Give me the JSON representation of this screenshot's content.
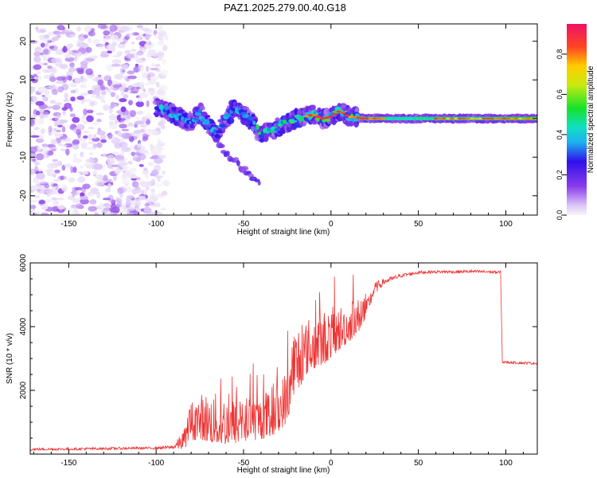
{
  "figure_title": "PAZ1.2025.279.00.40.G18",
  "chart_data": [
    {
      "type": "heatmap",
      "title": "PAZ1.2025.279.00.40.G18",
      "xlabel": "Height of straight line (km)",
      "ylabel": "Frequency (Hz)",
      "xlim": [
        -172,
        118
      ],
      "ylim": [
        -25,
        24.5
      ],
      "xticks": [
        -150,
        -100,
        -50,
        0,
        50,
        100
      ],
      "xticklabels": [
        "-150",
        "-100",
        "-50",
        "0",
        "50",
        "100"
      ],
      "yticks": [
        -20,
        -10,
        0,
        10,
        20
      ],
      "yticklabels": [
        "-20",
        "-10",
        "0",
        "10",
        "20"
      ],
      "colorbar": {
        "label": "Normalized spectral amplitude",
        "range": [
          0,
          0.95
        ],
        "ticks": [
          0,
          0.2,
          0.4,
          0.6,
          0.8
        ],
        "ticklabels": [
          "0.0",
          "0.2",
          "0.4",
          "0.6",
          "0.8"
        ]
      },
      "ridge": {
        "description": "frequency of main spectral ridge vs height",
        "points": [
          [
            -100,
            3
          ],
          [
            -95,
            2.5
          ],
          [
            -90,
            1
          ],
          [
            -85,
            0
          ],
          [
            -80,
            -1
          ],
          [
            -75,
            1.5
          ],
          [
            -70,
            -2
          ],
          [
            -65,
            -4
          ],
          [
            -60,
            0
          ],
          [
            -55,
            3
          ],
          [
            -50,
            1
          ],
          [
            -45,
            -1
          ],
          [
            -40,
            -4
          ],
          [
            -35,
            -3.5
          ],
          [
            -30,
            -2
          ],
          [
            -25,
            -1
          ],
          [
            -20,
            0
          ],
          [
            -10,
            1
          ],
          [
            -5,
            0
          ],
          [
            0,
            0.5
          ],
          [
            5,
            2
          ],
          [
            10,
            0.5
          ],
          [
            20,
            0
          ],
          [
            120,
            0
          ]
        ]
      },
      "secondary_branch": {
        "description": "weaker descending branch",
        "points": [
          [
            -65,
            -6
          ],
          [
            -60,
            -9
          ],
          [
            -55,
            -11
          ],
          [
            -50,
            -13
          ],
          [
            -45,
            -15
          ],
          [
            -40,
            -17
          ]
        ]
      },
      "noise_region": {
        "x_range": [
          -172,
          -98
        ],
        "y_range": [
          -25,
          24
        ],
        "max_amplitude": 0.15
      }
    },
    {
      "type": "line",
      "title": "",
      "xlabel": "Height of straight line (km)",
      "ylabel": "SNR (10 * v/v)",
      "xlim": [
        -172,
        118
      ],
      "ylim": [
        0,
        6000
      ],
      "xticks": [
        -150,
        -100,
        -50,
        0,
        50,
        100
      ],
      "xticklabels": [
        "-150",
        "-100",
        "-50",
        "0",
        "50",
        "100"
      ],
      "yticks": [
        2000,
        4000,
        6000
      ],
      "yticklabels": [
        "2000",
        "4000",
        "6000"
      ],
      "color": "#ee3333",
      "series": [
        {
          "name": "SNR",
          "x": [
            -172,
            -150,
            -120,
            -100,
            -90,
            -85,
            -80,
            -75,
            -70,
            -65,
            -60,
            -55,
            -50,
            -45,
            -40,
            -35,
            -30,
            -25,
            -22,
            -20,
            -18,
            -15,
            -10,
            -5,
            0,
            5,
            10,
            15,
            20,
            25,
            30,
            40,
            50,
            60,
            70,
            80,
            90,
            97,
            98,
            100,
            110,
            118
          ],
          "mean": [
            150,
            160,
            180,
            190,
            220,
            400,
            800,
            900,
            850,
            800,
            780,
            760,
            820,
            850,
            900,
            1000,
            1200,
            1500,
            2500,
            2600,
            2700,
            3000,
            3200,
            3300,
            3500,
            3700,
            3900,
            4100,
            4500,
            5200,
            5400,
            5600,
            5700,
            5720,
            5720,
            5730,
            5720,
            5700,
            2900,
            2880,
            2860,
            2850
          ],
          "spread": [
            80,
            80,
            80,
            80,
            120,
            600,
            800,
            900,
            1000,
            1000,
            1000,
            900,
            900,
            900,
            900,
            1000,
            1000,
            1100,
            1400,
            1400,
            1400,
            1100,
            1100,
            1100,
            1000,
            900,
            800,
            700,
            600,
            400,
            200,
            120,
            100,
            100,
            100,
            100,
            100,
            100,
            80,
            80,
            80,
            80
          ]
        }
      ]
    }
  ]
}
